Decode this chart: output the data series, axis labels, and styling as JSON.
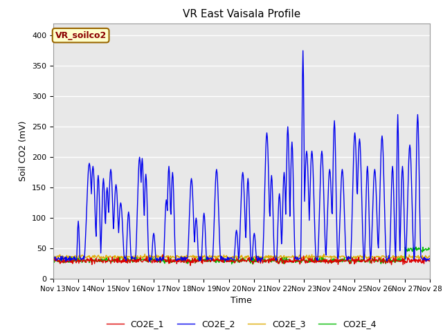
{
  "title": "VR East Vaisala Profile",
  "xlabel": "Time",
  "ylabel": "Soil CO2 (mV)",
  "ylim": [
    0,
    420
  ],
  "annotation": "VR_soilco2",
  "bg_color": "#e8e8e8",
  "series": {
    "CO2E_1": {
      "color": "#dd0000",
      "lw": 1.0
    },
    "CO2E_2": {
      "color": "#0000ee",
      "lw": 1.0
    },
    "CO2E_3": {
      "color": "#00bb00",
      "lw": 1.0
    },
    "CO2E_4": {
      "color": "#ddaa00",
      "lw": 1.0
    }
  },
  "xtick_labels": [
    "Nov 13",
    "Nov 14",
    "Nov 15",
    "Nov 16",
    "Nov 17",
    "Nov 18",
    "Nov 19",
    "Nov 20",
    "Nov 21",
    "Nov 22",
    "Nov 23",
    "Nov 24",
    "Nov 25",
    "Nov 26",
    "Nov 27",
    "Nov 28"
  ],
  "ytick_labels": [
    "0",
    "50",
    "100",
    "150",
    "200",
    "250",
    "300",
    "350",
    "400"
  ],
  "ytick_values": [
    0,
    50,
    100,
    150,
    200,
    250,
    300,
    350,
    400
  ]
}
